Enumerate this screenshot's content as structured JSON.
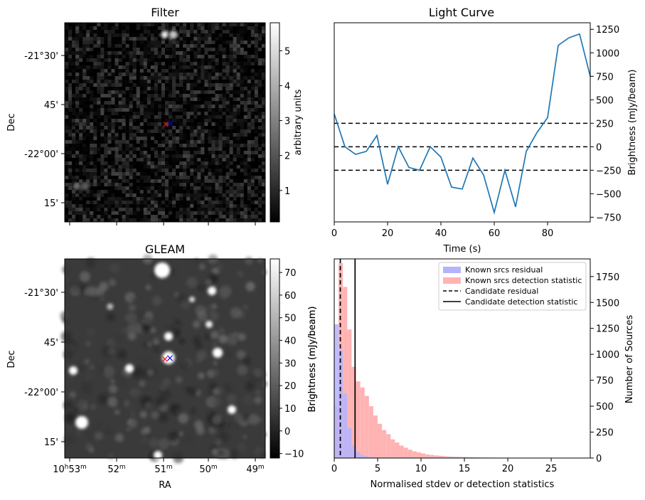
{
  "panels": {
    "filter": {
      "title": "Filter",
      "ylabel": "Dec",
      "y_ticks": [
        "-21°30'",
        "45'",
        "-22°00'",
        "15'"
      ],
      "colorbar": {
        "label": "arbitrary units",
        "range": [
          0.1,
          5.8
        ],
        "ticks": [
          "1",
          "2",
          "3",
          "4",
          "5"
        ],
        "colormap": "gray"
      },
      "sources": [
        {
          "label": "source near top",
          "ra_frac": 0.52,
          "dec_frac": 0.06,
          "level": 5.5
        },
        {
          "label": "faint source lower-left",
          "ra_frac": 0.08,
          "dec_frac": 0.82,
          "level": 2.5
        }
      ],
      "markers": [
        {
          "symbol": "×",
          "color": "#ff0000"
        },
        {
          "symbol": "×",
          "color": "#0000ff"
        }
      ]
    },
    "gleam": {
      "title": "GLEAM",
      "xlabel": "RA",
      "ylabel": "Dec",
      "x_ticks": [
        {
          "h": "10",
          "m": "53"
        },
        {
          "h": "",
          "m": "52"
        },
        {
          "h": "",
          "m": "51"
        },
        {
          "h": "",
          "m": "50"
        },
        {
          "h": "",
          "m": "49"
        }
      ],
      "y_ticks": [
        "-21°30'",
        "45'",
        "-22°00'",
        "15'"
      ],
      "colorbar": {
        "label": "Brightness (mJy/beam)",
        "range": [
          -12,
          76
        ],
        "ticks": [
          "−10",
          "0",
          "10",
          "20",
          "30",
          "40",
          "50",
          "60",
          "70"
        ],
        "colormap": "gray"
      },
      "markers": [
        {
          "symbol": "×",
          "color": "#ff0000"
        },
        {
          "symbol": "×",
          "color": "#0000ff"
        }
      ]
    },
    "light_curve": {
      "title": "Light Curve",
      "xlabel": "Time (s)",
      "ylabel": "Brightness (mJy/beam)",
      "y_ticks": [
        "1250",
        "1000",
        "750",
        "500",
        "250",
        "0",
        "−250",
        "−500",
        "−750"
      ],
      "x_ticks": [
        "0",
        "20",
        "40",
        "60",
        "80"
      ]
    },
    "histogram": {
      "xlabel": "Normalised stdev or detection statistics",
      "ylabel_left": "Brightness (mJy/beam)",
      "ylabel_right": "Number of Sources",
      "x_ticks": [
        "0",
        "5",
        "10",
        "15",
        "20",
        "25"
      ],
      "y_ticks": [
        "0",
        "250",
        "500",
        "750",
        "1000",
        "1250",
        "1500",
        "1750"
      ],
      "legend": [
        {
          "label": "Known srcs residual",
          "color": "#b3b3ff",
          "kind": "patch"
        },
        {
          "label": "Known srcs detection statistic",
          "color": "#ffb3b3",
          "kind": "patch"
        },
        {
          "label": "Candidate residual",
          "color": "#000000",
          "kind": "dashed"
        },
        {
          "label": "Candidate detection statistic",
          "color": "#000000",
          "kind": "solid"
        }
      ]
    }
  },
  "chart_data": [
    {
      "type": "line",
      "x": [
        0,
        4,
        8,
        12,
        16,
        20,
        24,
        28,
        32,
        36,
        40,
        44,
        48,
        52,
        56,
        60,
        64,
        68,
        72,
        76,
        80,
        84,
        88,
        92,
        96
      ],
      "series": [
        {
          "values": [
            350,
            0,
            -80,
            -50,
            120,
            -400,
            0,
            -220,
            -250,
            0,
            -110,
            -430,
            -450,
            -120,
            -300,
            -700,
            -250,
            -640,
            -50,
            150,
            310,
            1080,
            1160,
            1200,
            750
          ]
        }
      ],
      "hlines": [
        {
          "y": 250,
          "style": "dashed"
        },
        {
          "y": 0,
          "style": "dashed"
        },
        {
          "y": -250,
          "style": "dashed"
        }
      ],
      "xlim": [
        0,
        96
      ],
      "ylim": [
        -800,
        1320
      ],
      "title": "Light Curve",
      "xlabel": "Time (s)",
      "ylabel": "Brightness (mJy/beam)"
    },
    {
      "type": "bar",
      "bin_width": 0.5,
      "series": [
        {
          "name": "Known srcs residual",
          "color": "#b3b3ff",
          "x_start": 0,
          "values": [
            1290,
            1040,
            620,
            290,
            120,
            55,
            28,
            15,
            10,
            5,
            3,
            2,
            1
          ]
        },
        {
          "name": "Known srcs detection statistic",
          "color": "#ffb3b3",
          "x_start": 0,
          "values": [
            500,
            1880,
            1650,
            1240,
            880,
            740,
            680,
            600,
            500,
            410,
            330,
            270,
            230,
            180,
            150,
            120,
            100,
            80,
            65,
            55,
            45,
            35,
            30,
            25,
            22,
            18,
            15,
            13,
            12,
            11,
            10,
            8,
            7,
            6,
            5,
            5,
            4,
            4,
            3,
            3,
            3,
            2,
            2,
            2,
            2,
            2,
            1,
            1,
            1,
            1,
            1,
            1,
            1,
            1,
            1,
            1,
            1
          ]
        }
      ],
      "vlines": [
        {
          "name": "Candidate residual",
          "x": 0.7,
          "style": "dashed"
        },
        {
          "name": "Candidate detection statistic",
          "x": 2.4,
          "style": "solid"
        }
      ],
      "xlim": [
        0,
        29.5
      ],
      "ylim": [
        0,
        1920
      ],
      "xlabel": "Normalised stdev or detection statistics",
      "ylabel": "Number of Sources",
      "legend": "top-right"
    }
  ]
}
